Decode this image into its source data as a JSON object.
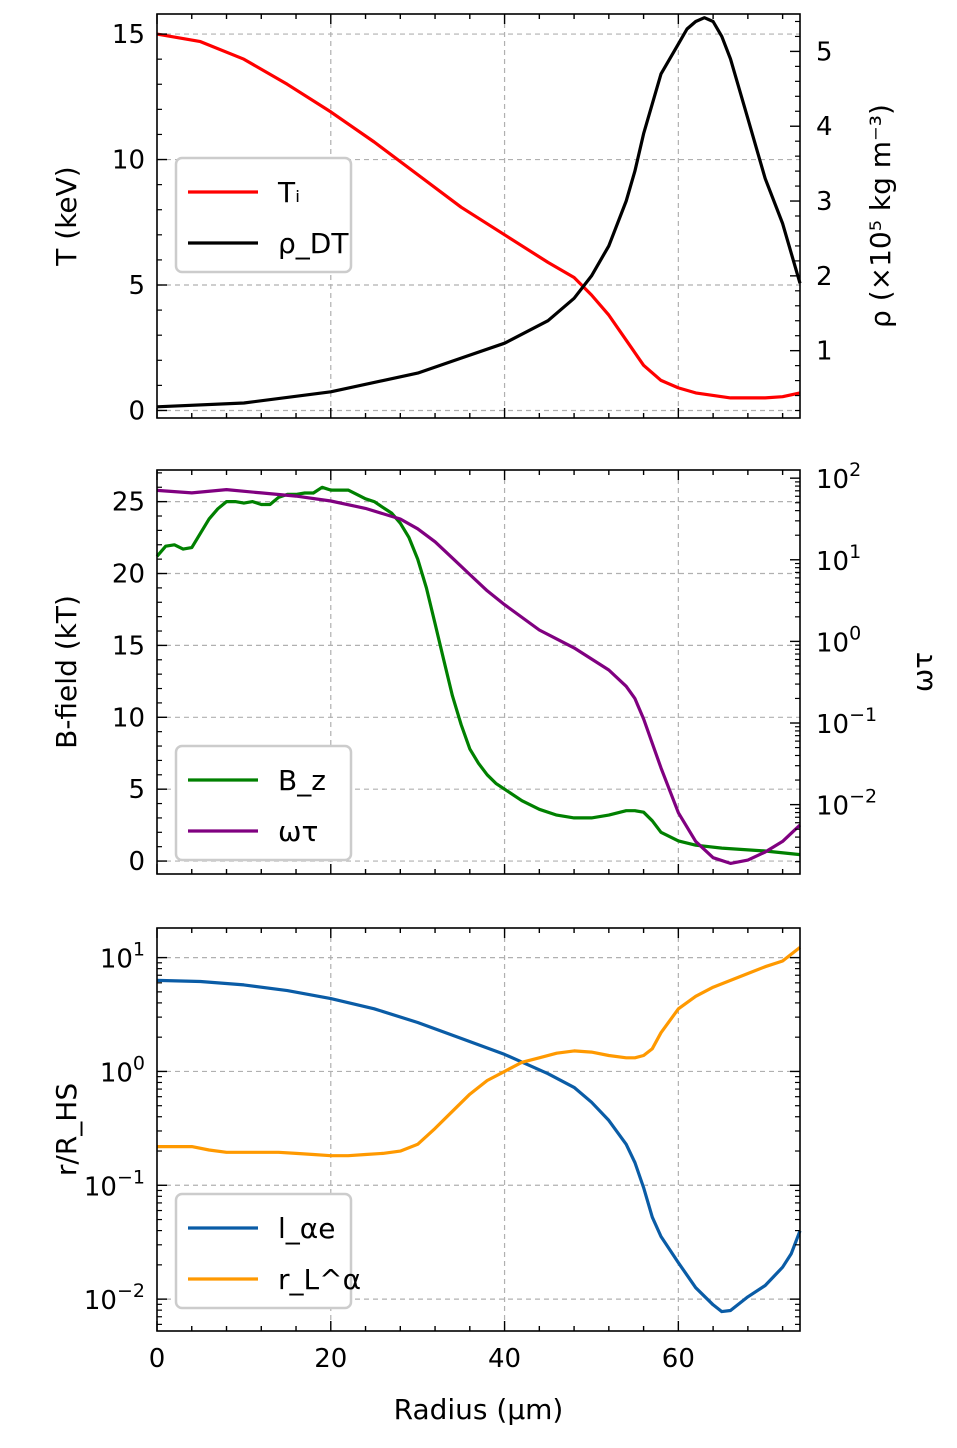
{
  "chart_data": [
    {
      "type": "line",
      "panel": "top",
      "xlim": [
        0,
        74
      ],
      "xlabel": "",
      "x_ticks": [
        0,
        20,
        40,
        60
      ],
      "y_left": {
        "label": "T (keV)",
        "lim": [
          -0.3,
          15.8
        ],
        "ticks": [
          0,
          5,
          10,
          15
        ],
        "tick_labels": [
          "0",
          "5",
          "10",
          "15"
        ]
      },
      "y_right": {
        "label": "ρ (×10⁵ kg m⁻³)",
        "lim": [
          0.1,
          5.5
        ],
        "ticks": [
          1,
          2,
          3,
          4,
          5
        ],
        "tick_labels": [
          "1",
          "2",
          "3",
          "4",
          "5"
        ]
      },
      "grid": true,
      "legend": {
        "position": "center-left",
        "entries": [
          {
            "label": "Tᵢ",
            "color": "#ff0000"
          },
          {
            "label": "ρ_DT",
            "color": "#000000"
          }
        ]
      },
      "series": [
        {
          "name": "Tᵢ",
          "axis": "left",
          "color": "#ff0000",
          "x": [
            0,
            5,
            10,
            15,
            20,
            25,
            30,
            35,
            40,
            45,
            48,
            50,
            52,
            54,
            56,
            58,
            60,
            62,
            64,
            66,
            68,
            70,
            72,
            74
          ],
          "y": [
            15.0,
            14.7,
            14.0,
            13.0,
            11.9,
            10.7,
            9.4,
            8.1,
            7.0,
            5.9,
            5.3,
            4.6,
            3.8,
            2.8,
            1.8,
            1.2,
            0.9,
            0.7,
            0.6,
            0.5,
            0.5,
            0.5,
            0.55,
            0.7
          ]
        },
        {
          "name": "ρ_DT",
          "axis": "right",
          "color": "#000000",
          "x": [
            0,
            10,
            20,
            30,
            35,
            40,
            45,
            48,
            50,
            52,
            54,
            55,
            56,
            57,
            58,
            60,
            61,
            62,
            63,
            64,
            65,
            66,
            68,
            70,
            72,
            74
          ],
          "y": [
            0.25,
            0.3,
            0.45,
            0.7,
            0.9,
            1.1,
            1.4,
            1.7,
            2.0,
            2.4,
            3.0,
            3.4,
            3.9,
            4.3,
            4.7,
            5.1,
            5.3,
            5.4,
            5.45,
            5.4,
            5.2,
            4.9,
            4.1,
            3.3,
            2.7,
            1.9
          ]
        }
      ]
    },
    {
      "type": "line",
      "panel": "middle",
      "xlim": [
        0,
        74
      ],
      "xlabel": "",
      "x_ticks": [
        0,
        20,
        40,
        60
      ],
      "y_left": {
        "label": "B-field (kT)",
        "lim": [
          -0.9,
          27.2
        ],
        "ticks": [
          0,
          5,
          10,
          15,
          20,
          25
        ],
        "tick_labels": [
          "0",
          "5",
          "10",
          "15",
          "20",
          "25"
        ]
      },
      "y_right": {
        "label": "ωτ",
        "scale": "log",
        "lim": [
          -2.85,
          2.1
        ],
        "ticks": [
          -2,
          -1,
          0,
          1,
          2
        ],
        "tick_labels": [
          "10⁻²",
          "10⁻¹",
          "10⁰",
          "10¹",
          "10²"
        ]
      },
      "grid": true,
      "legend": {
        "position": "lower-left",
        "entries": [
          {
            "label": "B_z",
            "color": "#008000"
          },
          {
            "label": "ωτ",
            "color": "#800080"
          }
        ]
      },
      "series": [
        {
          "name": "B_z",
          "axis": "left",
          "color": "#008000",
          "x": [
            0,
            1,
            2,
            3,
            4,
            5,
            6,
            7,
            8,
            9,
            10,
            11,
            12,
            13,
            14,
            15,
            16,
            17,
            18,
            19,
            20,
            21,
            22,
            23,
            24,
            25,
            26,
            27,
            28,
            29,
            30,
            31,
            32,
            33,
            34,
            35,
            36,
            37,
            38,
            39,
            40,
            42,
            44,
            46,
            48,
            50,
            52,
            54,
            55,
            56,
            57,
            58,
            60,
            62,
            65,
            70,
            74
          ],
          "y": [
            21.2,
            21.9,
            22.0,
            21.7,
            21.8,
            22.8,
            23.8,
            24.5,
            25.0,
            25.0,
            24.9,
            25.0,
            24.8,
            24.8,
            25.3,
            25.5,
            25.5,
            25.6,
            25.6,
            26.0,
            25.8,
            25.8,
            25.8,
            25.5,
            25.2,
            25.0,
            24.6,
            24.2,
            23.5,
            22.5,
            21.0,
            19.0,
            16.5,
            14.0,
            11.5,
            9.5,
            7.8,
            6.8,
            6.0,
            5.4,
            5.0,
            4.2,
            3.6,
            3.2,
            3.0,
            3.0,
            3.2,
            3.5,
            3.5,
            3.4,
            2.8,
            2.0,
            1.4,
            1.1,
            0.9,
            0.7,
            0.45
          ]
        },
        {
          "name": "ωτ",
          "axis": "right",
          "color": "#800080",
          "x": [
            0,
            4,
            8,
            12,
            16,
            20,
            24,
            28,
            30,
            32,
            34,
            36,
            38,
            40,
            44,
            48,
            52,
            54,
            55,
            56,
            58,
            60,
            62,
            64,
            66,
            68,
            70,
            72,
            73,
            74
          ],
          "y": [
            1.85,
            1.82,
            1.86,
            1.82,
            1.78,
            1.72,
            1.63,
            1.5,
            1.38,
            1.22,
            1.02,
            0.82,
            0.62,
            0.45,
            0.14,
            -0.08,
            -0.35,
            -0.55,
            -0.7,
            -0.95,
            -1.55,
            -2.1,
            -2.45,
            -2.65,
            -2.72,
            -2.68,
            -2.58,
            -2.45,
            -2.35,
            -2.25
          ]
        }
      ]
    },
    {
      "type": "line",
      "panel": "bottom",
      "scale_y": "log",
      "xlim": [
        0,
        74
      ],
      "xlabel": "Radius (μm)",
      "x_ticks": [
        0,
        20,
        40,
        60
      ],
      "x_tick_labels": [
        "0",
        "20",
        "40",
        "60"
      ],
      "y_left": {
        "label": "r/R_HS",
        "scale": "log",
        "lim": [
          -2.28,
          1.26
        ],
        "ticks": [
          -2,
          -1,
          0,
          1
        ],
        "tick_labels": [
          "10⁻²",
          "10⁻¹",
          "10⁰",
          "10¹"
        ]
      },
      "grid": true,
      "legend": {
        "position": "lower-left",
        "entries": [
          {
            "label": "l_αe",
            "color": "#0a5ca6"
          },
          {
            "label": "r_L^α",
            "color": "#ff9900"
          }
        ]
      },
      "series": [
        {
          "name": "l_αe",
          "axis": "left",
          "color": "#0a5ca6",
          "x": [
            0,
            5,
            10,
            15,
            20,
            25,
            30,
            35,
            40,
            45,
            48,
            50,
            52,
            54,
            55,
            56,
            57,
            58,
            60,
            62,
            64,
            65,
            66,
            68,
            70,
            72,
            73,
            74
          ],
          "y": [
            0.8,
            0.79,
            0.76,
            0.71,
            0.64,
            0.55,
            0.43,
            0.29,
            0.15,
            -0.02,
            -0.14,
            -0.27,
            -0.43,
            -0.64,
            -0.8,
            -1.02,
            -1.28,
            -1.45,
            -1.68,
            -1.9,
            -2.05,
            -2.11,
            -2.1,
            -1.98,
            -1.88,
            -1.72,
            -1.6,
            -1.4
          ]
        },
        {
          "name": "r_L^α",
          "axis": "left",
          "color": "#ff9900",
          "x": [
            0,
            2,
            4,
            6,
            8,
            10,
            12,
            14,
            16,
            18,
            20,
            22,
            24,
            26,
            28,
            30,
            32,
            34,
            36,
            38,
            40,
            42,
            44,
            46,
            48,
            50,
            52,
            54,
            55,
            56,
            57,
            58,
            60,
            62,
            64,
            66,
            68,
            70,
            72,
            74
          ],
          "y": [
            -0.66,
            -0.66,
            -0.66,
            -0.69,
            -0.71,
            -0.71,
            -0.71,
            -0.71,
            -0.72,
            -0.73,
            -0.74,
            -0.74,
            -0.73,
            -0.72,
            -0.7,
            -0.64,
            -0.5,
            -0.35,
            -0.2,
            -0.08,
            0.0,
            0.08,
            0.12,
            0.16,
            0.18,
            0.17,
            0.14,
            0.12,
            0.12,
            0.14,
            0.2,
            0.34,
            0.55,
            0.66,
            0.74,
            0.8,
            0.86,
            0.92,
            0.97,
            1.09
          ]
        }
      ]
    }
  ]
}
